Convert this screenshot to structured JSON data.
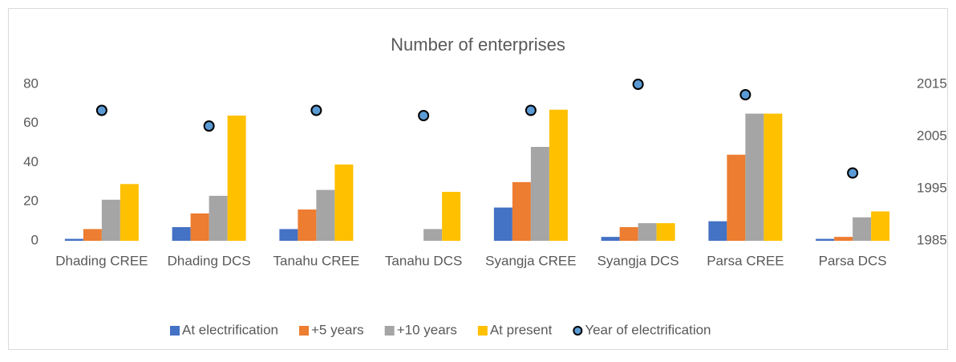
{
  "chart_data": {
    "type": "bar",
    "title": "Number of enterprises",
    "categories": [
      "Dhading CREE",
      "Dhading DCS",
      "Tanahu CREE",
      "Tanahu DCS",
      "Syangja CREE",
      "Syangja DCS",
      "Parsa CREE",
      "Parsa DCS"
    ],
    "series": [
      {
        "name": "At electrification",
        "color": "#4472c4",
        "values": [
          1,
          7,
          6,
          0,
          17,
          2,
          10,
          1
        ]
      },
      {
        "name": "+5 years",
        "color": "#ed7d31",
        "values": [
          6,
          14,
          16,
          0,
          30,
          7,
          44,
          2
        ]
      },
      {
        "name": "+10 years",
        "color": "#a5a5a5",
        "values": [
          21,
          23,
          26,
          6,
          48,
          9,
          65,
          12
        ]
      },
      {
        "name": "At present",
        "color": "#ffc000",
        "values": [
          29,
          64,
          39,
          25,
          67,
          9,
          65,
          15
        ]
      },
      {
        "name": "Year of electrification",
        "color": "#5b9bd5",
        "type": "scatter",
        "axis": "y2",
        "values": [
          2010,
          2007,
          2010,
          2009,
          2010,
          2015,
          2013,
          1998
        ]
      }
    ],
    "ylim": [
      0,
      80
    ],
    "yticks": [
      0,
      20,
      40,
      60,
      80
    ],
    "y2lim": [
      1985,
      2015
    ],
    "y2ticks": [
      1985,
      1995,
      2005,
      2015
    ],
    "legend": "bottom"
  }
}
